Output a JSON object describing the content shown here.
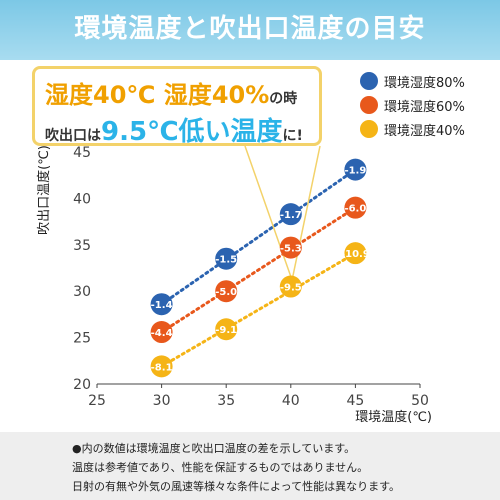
{
  "header": {
    "title": "環境温度と吹出口温度の目安"
  },
  "callout": {
    "line1": [
      {
        "text": "湿度",
        "cls": "orange"
      },
      {
        "text": "40℃",
        "cls": "orange"
      },
      {
        "text": " 湿度",
        "cls": "orange"
      },
      {
        "text": "40%",
        "cls": "orange"
      },
      {
        "text": "の時",
        "cls": "dark"
      }
    ],
    "line2": [
      {
        "text": "吹出口は",
        "cls": "dark"
      },
      {
        "text": "9.5℃低い温度",
        "cls": "blue"
      },
      {
        "text": "に!",
        "cls": "dark"
      }
    ]
  },
  "legend": [
    {
      "label": "環境湿度80%",
      "color": "#2b63b0"
    },
    {
      "label": "環境湿度60%",
      "color": "#e8581c"
    },
    {
      "label": "環境湿度40%",
      "color": "#f5b416"
    }
  ],
  "chart_data": {
    "type": "scatter",
    "xlabel": "環境温度(℃)",
    "ylabel": "吹出口温度(℃)",
    "xlim": [
      25,
      50
    ],
    "ylim": [
      20,
      45
    ],
    "xticks": [
      "25",
      "30",
      "35",
      "40",
      "45",
      "50"
    ],
    "yticks": [
      "20",
      "25",
      "30",
      "35",
      "40",
      "45"
    ],
    "grid": false,
    "series": [
      {
        "name": "環境湿度80%",
        "color": "#2b63b0",
        "points": [
          {
            "x": 30,
            "y": 28.6,
            "label": "-1.4"
          },
          {
            "x": 35,
            "y": 33.5,
            "label": "-1.5"
          },
          {
            "x": 40,
            "y": 38.3,
            "label": "-1.7"
          },
          {
            "x": 45,
            "y": 43.1,
            "label": "-1.9"
          }
        ]
      },
      {
        "name": "環境湿度60%",
        "color": "#e8581c",
        "points": [
          {
            "x": 30,
            "y": 25.6,
            "label": "-4.4"
          },
          {
            "x": 35,
            "y": 30.0,
            "label": "-5.0"
          },
          {
            "x": 40,
            "y": 34.7,
            "label": "-5.3"
          },
          {
            "x": 45,
            "y": 39.0,
            "label": "-6.0"
          }
        ]
      },
      {
        "name": "環境湿度40%",
        "color": "#f5b416",
        "points": [
          {
            "x": 30,
            "y": 21.9,
            "label": "-8.1"
          },
          {
            "x": 35,
            "y": 25.9,
            "label": "-9.1"
          },
          {
            "x": 40,
            "y": 30.5,
            "label": "-9.5"
          },
          {
            "x": 45,
            "y": 34.1,
            "label": "-10.9"
          }
        ]
      }
    ]
  },
  "notes": [
    "●内の数値は環境温度と吹出口温度の差を示しています。",
    "温度は参考値であり、性能を保証するものではありません。",
    "日射の有無や外気の風速等様々な条件によって性能は異なります。"
  ]
}
